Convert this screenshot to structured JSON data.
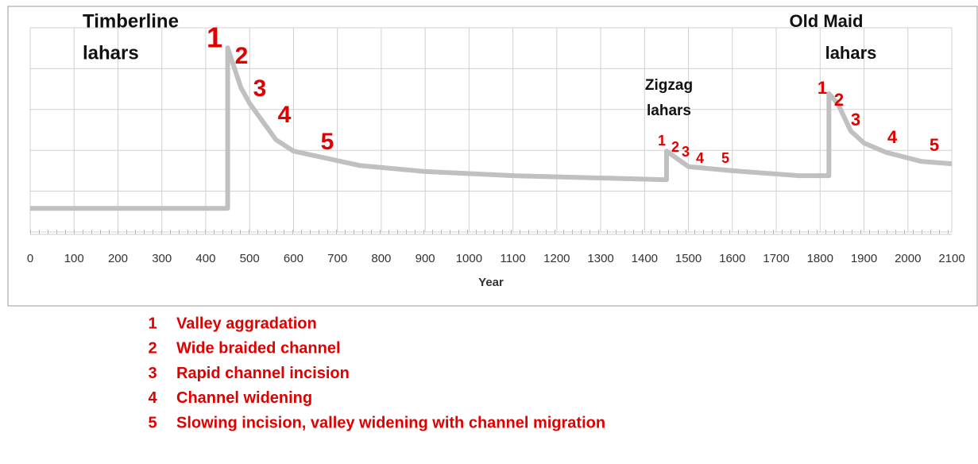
{
  "chart_data": {
    "type": "line",
    "xlabel": "Year",
    "x": [
      0,
      450,
      450,
      480,
      500,
      560,
      600,
      750,
      900,
      1100,
      1450,
      1450,
      1500,
      1600,
      1750,
      1820,
      1820,
      1840,
      1870,
      1900,
      1950,
      2030,
      2100
    ],
    "series": [
      {
        "color": "#c0c0c0",
        "values": [
          0.58,
          0.58,
          4.51,
          3.54,
          3.15,
          2.26,
          1.98,
          1.63,
          1.48,
          1.38,
          1.28,
          1.98,
          1.6,
          1.5,
          1.38,
          1.38,
          3.39,
          3.15,
          2.47,
          2.18,
          1.95,
          1.73,
          1.67
        ]
      }
    ],
    "xlim": [
      0,
      2100
    ],
    "xticks": [
      0,
      100,
      200,
      300,
      400,
      500,
      600,
      700,
      800,
      900,
      1000,
      1100,
      1200,
      1300,
      1400,
      1500,
      1600,
      1700,
      1800,
      1900,
      2000,
      2100
    ],
    "ylim": [
      0,
      5
    ],
    "yticks": [
      0,
      1,
      2,
      3,
      4,
      5
    ],
    "grid": true,
    "annotations": [
      {
        "lines": [
          "Timberline",
          "lahars"
        ],
        "stages": [
          "1",
          "2",
          "3",
          "4",
          "5"
        ]
      },
      {
        "lines": [
          "Zigzag",
          "lahars"
        ],
        "stages": [
          "1",
          "2",
          "3",
          "4",
          "5"
        ]
      },
      {
        "lines": [
          "Old Maid",
          "lahars"
        ],
        "stages": [
          "1",
          "2",
          "3",
          "4",
          "5"
        ]
      }
    ],
    "legend": [
      {
        "number": "1",
        "text": "Valley aggradation"
      },
      {
        "number": "2",
        "text": "Wide braided channel"
      },
      {
        "number": "3",
        "text": "Rapid channel incision"
      },
      {
        "number": "4",
        "text": "Channel widening"
      },
      {
        "number": "5",
        "text": "Slowing incision, valley widening with channel migration"
      }
    ]
  }
}
